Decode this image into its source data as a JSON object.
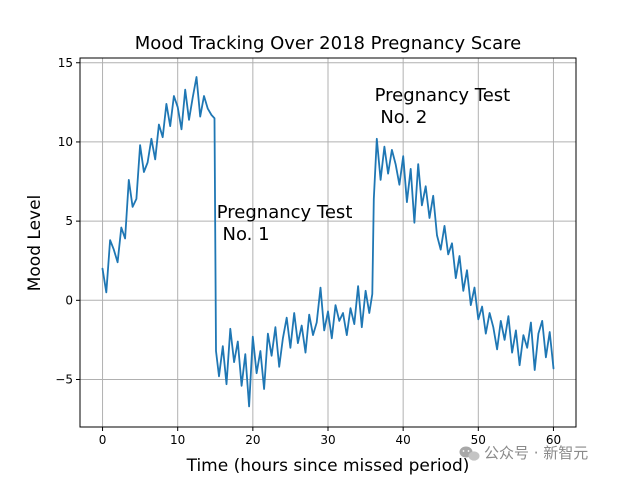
{
  "chart_data": {
    "type": "line",
    "title": "Mood Tracking Over 2018 Pregnancy Scare",
    "xlabel": "Time (hours since missed period)",
    "ylabel": "Mood Level",
    "xlim": [
      -3,
      63
    ],
    "ylim": [
      -8,
      15.3
    ],
    "xticks": [
      0,
      10,
      20,
      30,
      40,
      50,
      60
    ],
    "yticks": [
      -5,
      0,
      5,
      10,
      15
    ],
    "grid": true,
    "series": [
      {
        "name": "Mood Level",
        "color": "#1f77b4",
        "x": [
          0,
          0.5,
          1,
          1.5,
          2,
          2.5,
          3,
          3.5,
          4,
          4.5,
          5,
          5.5,
          6,
          6.5,
          7,
          7.5,
          8,
          8.5,
          9,
          9.5,
          10,
          10.5,
          11,
          11.5,
          12,
          12.5,
          13,
          13.5,
          14,
          14.5,
          14.9,
          15.1,
          15.5,
          16,
          16.5,
          17,
          17.5,
          18,
          18.5,
          19,
          19.5,
          20,
          20.5,
          21,
          21.5,
          22,
          22.5,
          23,
          23.5,
          24,
          24.5,
          25,
          25.5,
          26,
          26.5,
          27,
          27.5,
          28,
          28.5,
          29,
          29.5,
          30,
          30.5,
          31,
          31.5,
          32,
          32.5,
          33,
          33.5,
          34,
          34.5,
          35,
          35.5,
          35.9,
          36.1,
          36.5,
          37,
          37.5,
          38,
          38.5,
          39,
          39.5,
          40,
          40.5,
          41,
          41.5,
          42,
          42.5,
          43,
          43.5,
          44,
          44.5,
          45,
          45.5,
          46,
          46.5,
          47,
          47.5,
          48,
          48.5,
          49,
          49.5,
          50,
          50.5,
          51,
          51.5,
          52,
          52.5,
          53,
          53.5,
          54,
          54.5,
          55,
          55.5,
          56,
          56.5,
          57,
          57.5,
          58,
          58.5,
          59,
          59.5,
          60
        ],
        "y": [
          2.0,
          0.5,
          3.8,
          3.2,
          2.4,
          4.6,
          3.9,
          7.6,
          5.9,
          6.4,
          9.8,
          8.1,
          8.7,
          10.2,
          8.9,
          11.1,
          10.3,
          12.4,
          11.0,
          12.9,
          12.2,
          10.8,
          13.3,
          11.4,
          12.8,
          14.1,
          11.6,
          12.9,
          12.1,
          11.7,
          11.5,
          -3.2,
          -4.8,
          -2.9,
          -5.3,
          -1.8,
          -3.9,
          -2.6,
          -5.4,
          -3.4,
          -6.7,
          -2.3,
          -4.6,
          -3.2,
          -5.6,
          -2.1,
          -3.5,
          -1.7,
          -4.2,
          -2.4,
          -1.1,
          -3.0,
          -0.8,
          -2.7,
          -1.6,
          -3.3,
          -0.9,
          -2.2,
          -1.4,
          0.8,
          -1.9,
          -0.7,
          -2.4,
          -0.3,
          -1.3,
          -0.8,
          -2.2,
          -0.5,
          -1.5,
          0.9,
          -1.7,
          0.6,
          -0.8,
          0.4,
          6.4,
          10.2,
          7.6,
          9.7,
          8.0,
          9.5,
          8.6,
          7.3,
          9.1,
          6.2,
          8.3,
          4.9,
          8.6,
          6.0,
          7.2,
          5.2,
          6.6,
          4.1,
          3.2,
          4.7,
          2.9,
          3.6,
          1.4,
          2.8,
          0.6,
          1.9,
          -0.3,
          0.8,
          -1.2,
          -0.4,
          -2.1,
          -0.8,
          -1.7,
          -3.1,
          -1.3,
          -2.5,
          -1.0,
          -3.3,
          -1.9,
          -4.1,
          -2.2,
          -3.0,
          -1.4,
          -4.4,
          -2.1,
          -1.3,
          -3.6,
          -2.0,
          -4.3
        ]
      }
    ],
    "annotations": [
      {
        "lines": [
          "Pregnancy Test",
          " No. 1"
        ],
        "x": 15.2,
        "y": 5.2
      },
      {
        "lines": [
          "Pregnancy Test",
          " No. 2"
        ],
        "x": 36.2,
        "y": 12.6
      }
    ]
  },
  "watermark": {
    "icon": "wechat-icon",
    "text": "公众号 · 新智元"
  }
}
